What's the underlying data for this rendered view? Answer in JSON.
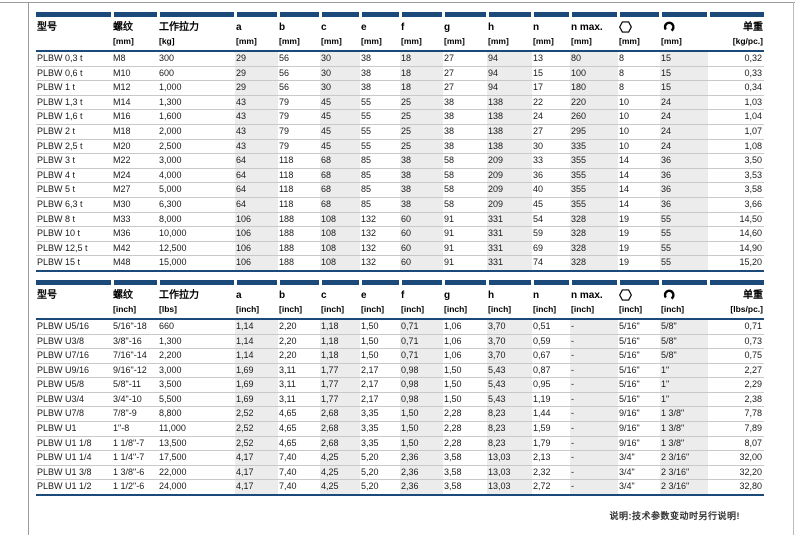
{
  "page": {
    "footer_note": "说明:技术参数变动时另行说明!",
    "accent_color": "#1b4a7a",
    "stripe_color": "#ececec"
  },
  "tables": [
    {
      "name": "metric",
      "columns": [
        {
          "label": "型号",
          "unit": ""
        },
        {
          "label": "螺纹",
          "unit": "[mm]"
        },
        {
          "label": "工作拉力",
          "unit": "[kg]"
        },
        {
          "label": "a",
          "unit": "[mm]"
        },
        {
          "label": "b",
          "unit": "[mm]"
        },
        {
          "label": "c",
          "unit": "[mm]"
        },
        {
          "label": "e",
          "unit": "[mm]"
        },
        {
          "label": "f",
          "unit": "[mm]"
        },
        {
          "label": "g",
          "unit": "[mm]"
        },
        {
          "label": "h",
          "unit": "[mm]"
        },
        {
          "label": "n",
          "unit": "[mm]"
        },
        {
          "label": "n max.",
          "unit": "[mm]"
        },
        {
          "label": "hexagon-icon",
          "icon": "hexagon",
          "unit": "[mm]"
        },
        {
          "label": "wrench-icon",
          "icon": "wrench",
          "unit": "[mm]"
        },
        {
          "label": "单重",
          "unit": "[kg/pc.]"
        }
      ],
      "rows": [
        [
          "PLBW 0,3 t",
          "M8",
          "300",
          "29",
          "56",
          "30",
          "38",
          "18",
          "27",
          "94",
          "13",
          "80",
          "8",
          "15",
          "0,32"
        ],
        [
          "PLBW 0,6 t",
          "M10",
          "600",
          "29",
          "56",
          "30",
          "38",
          "18",
          "27",
          "94",
          "15",
          "100",
          "8",
          "15",
          "0,33"
        ],
        [
          "PLBW 1 t",
          "M12",
          "1,000",
          "29",
          "56",
          "30",
          "38",
          "18",
          "27",
          "94",
          "17",
          "180",
          "8",
          "15",
          "0,34"
        ],
        [
          "PLBW 1,3 t",
          "M14",
          "1,300",
          "43",
          "79",
          "45",
          "55",
          "25",
          "38",
          "138",
          "22",
          "220",
          "10",
          "24",
          "1,03"
        ],
        [
          "PLBW 1,6 t",
          "M16",
          "1,600",
          "43",
          "79",
          "45",
          "55",
          "25",
          "38",
          "138",
          "24",
          "260",
          "10",
          "24",
          "1,04"
        ],
        [
          "PLBW 2 t",
          "M18",
          "2,000",
          "43",
          "79",
          "45",
          "55",
          "25",
          "38",
          "138",
          "27",
          "295",
          "10",
          "24",
          "1,07"
        ],
        [
          "PLBW 2,5 t",
          "M20",
          "2,500",
          "43",
          "79",
          "45",
          "55",
          "25",
          "38",
          "138",
          "30",
          "335",
          "10",
          "24",
          "1,08"
        ],
        [
          "PLBW 3 t",
          "M22",
          "3,000",
          "64",
          "118",
          "68",
          "85",
          "38",
          "58",
          "209",
          "33",
          "355",
          "14",
          "36",
          "3,50"
        ],
        [
          "PLBW 4 t",
          "M24",
          "4,000",
          "64",
          "118",
          "68",
          "85",
          "38",
          "58",
          "209",
          "36",
          "355",
          "14",
          "36",
          "3,53"
        ],
        [
          "PLBW 5 t",
          "M27",
          "5,000",
          "64",
          "118",
          "68",
          "85",
          "38",
          "58",
          "209",
          "40",
          "355",
          "14",
          "36",
          "3,58"
        ],
        [
          "PLBW 6,3 t",
          "M30",
          "6,300",
          "64",
          "118",
          "68",
          "85",
          "38",
          "58",
          "209",
          "45",
          "355",
          "14",
          "36",
          "3,66"
        ],
        [
          "PLBW 8 t",
          "M33",
          "8,000",
          "106",
          "188",
          "108",
          "132",
          "60",
          "91",
          "331",
          "54",
          "328",
          "19",
          "55",
          "14,50"
        ],
        [
          "PLBW 10 t",
          "M36",
          "10,000",
          "106",
          "188",
          "108",
          "132",
          "60",
          "91",
          "331",
          "59",
          "328",
          "19",
          "55",
          "14,60"
        ],
        [
          "PLBW 12,5 t",
          "M42",
          "12,500",
          "106",
          "188",
          "108",
          "132",
          "60",
          "91",
          "331",
          "69",
          "328",
          "19",
          "55",
          "14,90"
        ],
        [
          "PLBW 15 t",
          "M48",
          "15,000",
          "106",
          "188",
          "108",
          "132",
          "60",
          "91",
          "331",
          "74",
          "328",
          "19",
          "55",
          "15,20"
        ]
      ]
    },
    {
      "name": "imperial",
      "columns": [
        {
          "label": "型号",
          "unit": ""
        },
        {
          "label": "螺纹",
          "unit": "[inch]"
        },
        {
          "label": "工作拉力",
          "unit": "[lbs]"
        },
        {
          "label": "a",
          "unit": "[inch]"
        },
        {
          "label": "b",
          "unit": "[inch]"
        },
        {
          "label": "c",
          "unit": "[inch]"
        },
        {
          "label": "e",
          "unit": "[inch]"
        },
        {
          "label": "f",
          "unit": "[inch]"
        },
        {
          "label": "g",
          "unit": "[inch]"
        },
        {
          "label": "h",
          "unit": "[inch]"
        },
        {
          "label": "n",
          "unit": "[inch]"
        },
        {
          "label": "n max.",
          "unit": "[inch]"
        },
        {
          "label": "hexagon-icon",
          "icon": "hexagon",
          "unit": "[inch]"
        },
        {
          "label": "wrench-icon",
          "icon": "wrench",
          "unit": "[inch]"
        },
        {
          "label": "单重",
          "unit": "[lbs/pc.]"
        }
      ],
      "rows": [
        [
          "PLBW U5/16",
          "5/16\"-18",
          "660",
          "1,14",
          "2,20",
          "1,18",
          "1,50",
          "0,71",
          "1,06",
          "3,70",
          "0,51",
          "-",
          "5/16\"",
          "5/8\"",
          "0,71"
        ],
        [
          "PLBW U3/8",
          "3/8\"-16",
          "1,300",
          "1,14",
          "2,20",
          "1,18",
          "1,50",
          "0,71",
          "1,06",
          "3,70",
          "0,59",
          "-",
          "5/16\"",
          "5/8\"",
          "0,73"
        ],
        [
          "PLBW U7/16",
          "7/16\"-14",
          "2,200",
          "1,14",
          "2,20",
          "1,18",
          "1,50",
          "0,71",
          "1,06",
          "3,70",
          "0,67",
          "-",
          "5/16\"",
          "5/8\"",
          "0,75"
        ],
        [
          "PLBW U9/16",
          "9/16\"-12",
          "3,000",
          "1,69",
          "3,11",
          "1,77",
          "2,17",
          "0,98",
          "1,50",
          "5,43",
          "0,87",
          "-",
          "5/16\"",
          "1\"",
          "2,27"
        ],
        [
          "PLBW U5/8",
          "5/8\"-11",
          "3,500",
          "1,69",
          "3,11",
          "1,77",
          "2,17",
          "0,98",
          "1,50",
          "5,43",
          "0,95",
          "-",
          "5/16\"",
          "1\"",
          "2,29"
        ],
        [
          "PLBW U3/4",
          "3/4\"-10",
          "5,500",
          "1,69",
          "3,11",
          "1,77",
          "2,17",
          "0,98",
          "1,50",
          "5,43",
          "1,19",
          "-",
          "5/16\"",
          "1\"",
          "2,38"
        ],
        [
          "PLBW U7/8",
          "7/8\"-9",
          "8,800",
          "2,52",
          "4,65",
          "2,68",
          "3,35",
          "1,50",
          "2,28",
          "8,23",
          "1,44",
          "-",
          "9/16\"",
          "1 3/8\"",
          "7,78"
        ],
        [
          "PLBW U1",
          "1\"-8",
          "11,000",
          "2,52",
          "4,65",
          "2,68",
          "3,35",
          "1,50",
          "2,28",
          "8,23",
          "1,59",
          "-",
          "9/16\"",
          "1 3/8\"",
          "7,89"
        ],
        [
          "PLBW U1 1/8",
          "1 1/8\"-7",
          "13,500",
          "2,52",
          "4,65",
          "2,68",
          "3,35",
          "1,50",
          "2,28",
          "8,23",
          "1,79",
          "-",
          "9/16\"",
          "1 3/8\"",
          "8,07"
        ],
        [
          "PLBW U1 1/4",
          "1 1/4\"-7",
          "17,500",
          "4,17",
          "7,40",
          "4,25",
          "5,20",
          "2,36",
          "3,58",
          "13,03",
          "2,13",
          "-",
          "3/4\"",
          "2 3/16\"",
          "32,00"
        ],
        [
          "PLBW U1 3/8",
          "1 3/8\"-6",
          "22,000",
          "4,17",
          "7,40",
          "4,25",
          "5,20",
          "2,36",
          "3,58",
          "13,03",
          "2,32",
          "-",
          "3/4\"",
          "2 3/16\"",
          "32,20"
        ],
        [
          "PLBW U1 1/2",
          "1 1/2\"-6",
          "24,000",
          "4,17",
          "7,40",
          "4,25",
          "5,20",
          "2,36",
          "3,58",
          "13,03",
          "2,72",
          "-",
          "3/4\"",
          "2 3/16\"",
          "32,80"
        ]
      ]
    }
  ]
}
